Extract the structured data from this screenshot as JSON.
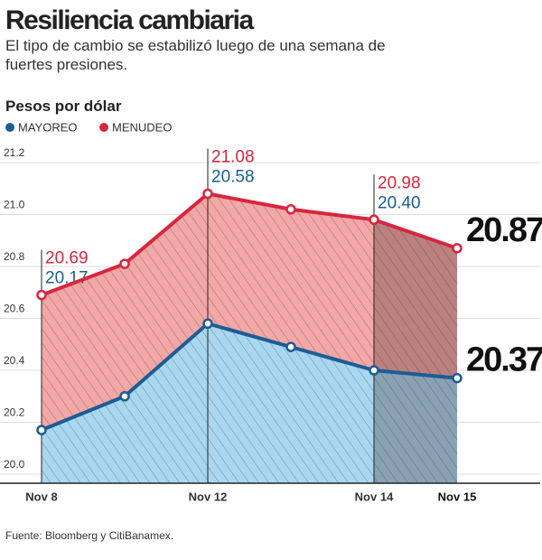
{
  "chart_data": {
    "type": "line",
    "title": "Resiliencia cambiaria",
    "subtitle": "El tipo de cambio se estabilizó luego de una semana de fuertes presiones.",
    "y_label": "Pesos por dólar",
    "source": "Fuente: Bloomberg y CitiBanamex.",
    "categories": [
      "Nov 8",
      null,
      "Nov 12",
      null,
      "Nov 14",
      "Nov 15"
    ],
    "series": [
      {
        "name": "MAYOREO",
        "color": "#1c5d94",
        "values": [
          20.17,
          20.3,
          20.58,
          20.49,
          20.4,
          20.37
        ],
        "value_labels": [
          "20.17",
          null,
          "20.58",
          null,
          "20.40",
          "20.37"
        ]
      },
      {
        "name": "MENUDEO",
        "color": "#d8263f",
        "values": [
          20.69,
          20.81,
          21.08,
          21.02,
          20.98,
          20.87
        ],
        "value_labels": [
          "20.69",
          null,
          "21.08",
          null,
          "20.98",
          "20.87"
        ]
      }
    ],
    "ylim": [
      20.0,
      21.2
    ],
    "yticks": [
      {
        "value": 20.0,
        "label": "20.0"
      },
      20.2,
      20.4,
      20.6,
      20.8,
      {
        "value": 21.0,
        "label": "21.0"
      },
      21.2
    ],
    "grid": true
  }
}
